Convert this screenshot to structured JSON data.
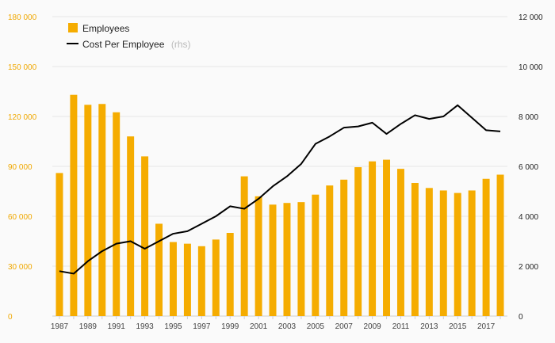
{
  "chart_data": {
    "type": "bar+line",
    "legend": {
      "bar_label": "Employees",
      "line_label": "Cost Per Employee",
      "line_suffix": "(rhs)",
      "placement": "top-left"
    },
    "x": [
      1987,
      1988,
      1989,
      1990,
      1991,
      1992,
      1993,
      1994,
      1995,
      1996,
      1997,
      1998,
      1999,
      2000,
      2001,
      2002,
      2003,
      2004,
      2005,
      2006,
      2007,
      2008,
      2009,
      2010,
      2011,
      2012,
      2013,
      2014,
      2015,
      2016,
      2017,
      2018
    ],
    "x_tick_labels": [
      "1987",
      "1989",
      "1991",
      "1993",
      "1995",
      "1997",
      "1999",
      "2001",
      "2003",
      "2005",
      "2007",
      "2009",
      "2011",
      "2013",
      "2015",
      "2017"
    ],
    "series": [
      {
        "name": "Employees",
        "type": "bar",
        "axis": "left",
        "values": [
          86000,
          133000,
          127000,
          127500,
          122500,
          108000,
          96000,
          55500,
          44500,
          43500,
          42000,
          46000,
          50000,
          84000,
          72000,
          67000,
          68000,
          68500,
          73000,
          78500,
          82000,
          89500,
          93000,
          94000,
          88500,
          80000,
          77000,
          75500,
          74000,
          75500,
          82500,
          85000
        ]
      },
      {
        "name": "Cost Per Employee",
        "type": "line",
        "axis": "right",
        "values": [
          1800,
          1700,
          2200,
          2600,
          2900,
          3000,
          2700,
          3000,
          3300,
          3400,
          3700,
          4000,
          4400,
          4300,
          4700,
          5200,
          5600,
          6100,
          6900,
          7200,
          7550,
          7600,
          7750,
          7300,
          7700,
          8050,
          7900,
          8000,
          8450,
          7950,
          7450,
          7400
        ]
      }
    ],
    "y_left": {
      "range": [
        0,
        180000
      ],
      "ticks": [
        0,
        30000,
        60000,
        90000,
        120000,
        150000,
        180000
      ],
      "tick_labels": [
        "0",
        "30 000",
        "60 000",
        "90 000",
        "120 000",
        "150 000",
        "180 000"
      ]
    },
    "y_right": {
      "range": [
        0,
        12000
      ],
      "ticks": [
        0,
        2000,
        4000,
        6000,
        8000,
        10000,
        12000
      ],
      "tick_labels": [
        "0",
        "2 000",
        "4 000",
        "6 000",
        "8 000",
        "10 000",
        "12 000"
      ]
    },
    "grid": true,
    "colors": {
      "bar": "#f5ac00",
      "line": "#000000",
      "left_axis": "#f0a800",
      "grid": "#e6e6e6"
    }
  }
}
